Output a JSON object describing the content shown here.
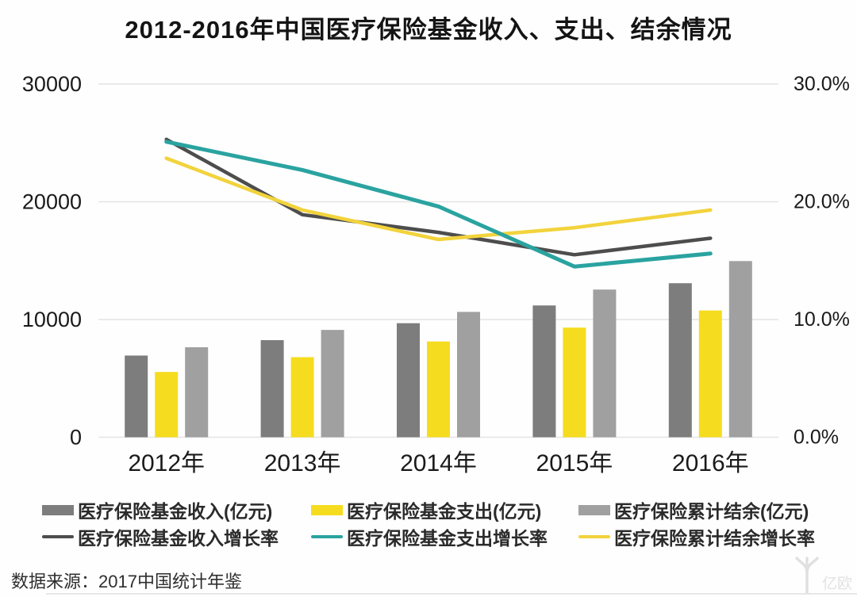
{
  "page": {
    "title": "2012-2016年中国医疗保险基金收入、支出、结余情况",
    "source": "数据来源：2017中国统计年鉴",
    "watermark": "亿欧"
  },
  "colors": {
    "income_bar": "#7d7d7d",
    "expenditure_bar": "#f6dc1e",
    "balance_bar": "#a0a0a0",
    "income_line": "#4d4d4d",
    "expenditure_line": "#2aa3a0",
    "balance_line": "#f2d33c",
    "grid": "#e4e4e4",
    "axis_text": "#1a1a1a",
    "watermark": "#e0e0e0"
  },
  "chart_data": {
    "type": "bar+line",
    "title": "2012-2016年中国医疗保险基金收入、支出、结余情况",
    "categories": [
      "2012年",
      "2013年",
      "2014年",
      "2015年",
      "2016年"
    ],
    "bar_series": [
      {
        "name": "医疗保险基金收入(亿元)",
        "axis": "left",
        "color": "#7d7d7d",
        "values": [
          6939,
          8248,
          9687,
          11193,
          13084
        ]
      },
      {
        "name": "医疗保险基金支出(亿元)",
        "axis": "left",
        "color": "#f6dc1e",
        "values": [
          5544,
          6801,
          8134,
          9312,
          10767
        ]
      },
      {
        "name": "医疗保险累计结余(亿元)",
        "axis": "left",
        "color": "#a0a0a0",
        "values": [
          7644,
          9116,
          10645,
          12543,
          14964
        ]
      }
    ],
    "line_series": [
      {
        "name": "医疗保险基金收入增长率",
        "axis": "right",
        "color": "#4d4d4d",
        "values": [
          25.3,
          18.9,
          17.4,
          15.5,
          16.9
        ]
      },
      {
        "name": "医疗保险基金支出增长率",
        "axis": "right",
        "color": "#2aa3a0",
        "values": [
          25.1,
          22.7,
          19.6,
          14.5,
          15.6
        ]
      },
      {
        "name": "医疗保险累计结余增长率",
        "axis": "right",
        "color": "#f2d33c",
        "values": [
          23.7,
          19.3,
          16.8,
          17.8,
          19.3
        ]
      }
    ],
    "left_axis": {
      "range": [
        0,
        30000
      ],
      "tick_values": [
        0,
        10000,
        20000,
        30000
      ],
      "tick_labels": [
        "0",
        "10000",
        "20000",
        "30000"
      ]
    },
    "right_axis": {
      "range": [
        0,
        30
      ],
      "tick_values": [
        0,
        10,
        20,
        30
      ],
      "tick_labels": [
        "0.0%",
        "10.0%",
        "20.0%",
        "30.0%"
      ]
    },
    "grid": true,
    "legend_position": "bottom"
  },
  "legend": {
    "items": [
      {
        "label": "医疗保险基金收入(亿元)",
        "swatch": "bar",
        "color": "#7d7d7d"
      },
      {
        "label": "医疗保险基金支出(亿元)",
        "swatch": "bar",
        "color": "#f6dc1e"
      },
      {
        "label": "医疗保险累计结余(亿元)",
        "swatch": "bar",
        "color": "#a0a0a0"
      },
      {
        "label": "医疗保险基金收入增长率",
        "swatch": "line",
        "color": "#4d4d4d"
      },
      {
        "label": "医疗保险基金支出增长率",
        "swatch": "line",
        "color": "#2aa3a0"
      },
      {
        "label": "医疗保险累计结余增长率",
        "swatch": "line",
        "color": "#f2d33c"
      }
    ]
  }
}
